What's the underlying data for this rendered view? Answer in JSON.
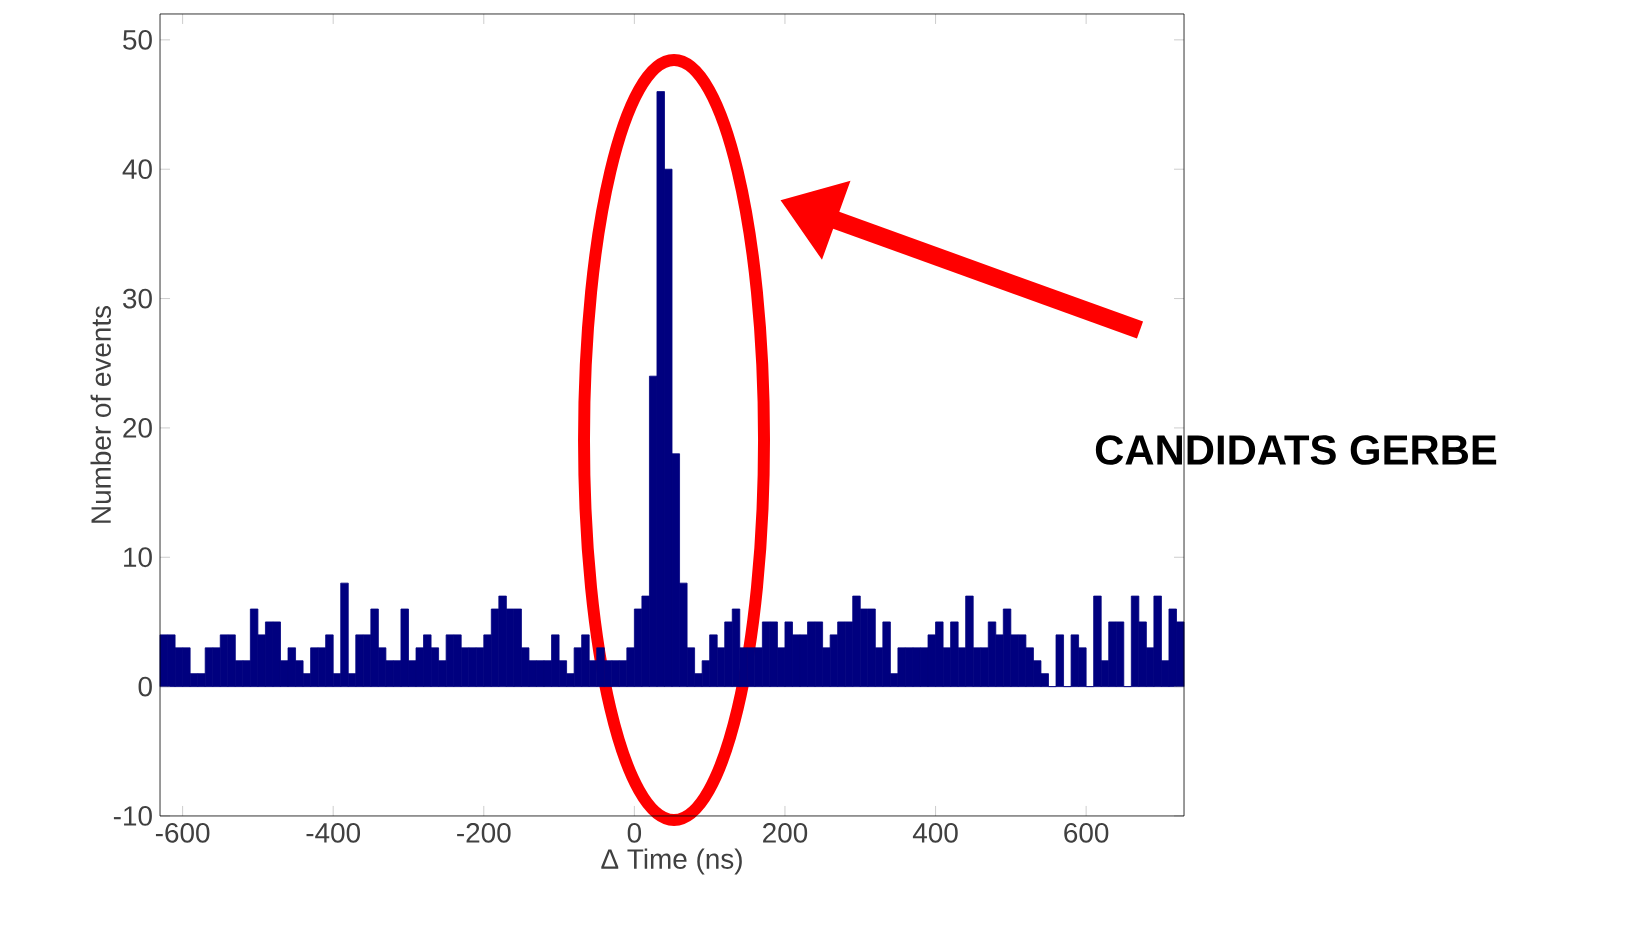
{
  "chart_data": {
    "type": "histogram",
    "bins": [
      -630,
      -620,
      -610,
      -600,
      -590,
      -580,
      -570,
      -560,
      -550,
      -540,
      -530,
      -520,
      -510,
      -500,
      -490,
      -480,
      -470,
      -460,
      -450,
      -440,
      -430,
      -420,
      -410,
      -400,
      -390,
      -380,
      -370,
      -360,
      -350,
      -340,
      -330,
      -320,
      -310,
      -300,
      -290,
      -280,
      -270,
      -260,
      -250,
      -240,
      -230,
      -220,
      -210,
      -200,
      -190,
      -180,
      -170,
      -160,
      -150,
      -140,
      -130,
      -120,
      -110,
      -100,
      -90,
      -80,
      -70,
      -60,
      -50,
      -40,
      -30,
      -20,
      -10,
      0,
      10,
      20,
      30,
      40,
      50,
      60,
      70,
      80,
      90,
      100,
      110,
      120,
      130,
      140,
      150,
      160,
      170,
      180,
      190,
      200,
      210,
      220,
      230,
      240,
      250,
      260,
      270,
      280,
      290,
      300,
      310,
      320,
      330,
      340,
      350,
      360,
      370,
      380,
      390,
      400,
      410,
      420,
      430,
      440,
      450,
      460,
      470,
      480,
      490,
      500,
      510,
      520,
      530,
      540,
      550,
      560,
      570,
      580,
      590,
      600,
      610,
      620,
      630,
      640,
      650,
      660,
      670,
      680,
      690,
      700,
      710,
      720,
      730
    ],
    "values": [
      4,
      4,
      3,
      3,
      1,
      1,
      3,
      3,
      4,
      4,
      2,
      2,
      6,
      4,
      5,
      5,
      2,
      3,
      2,
      1,
      3,
      3,
      4,
      1,
      8,
      1,
      4,
      4,
      6,
      3,
      2,
      2,
      6,
      2,
      3,
      4,
      3,
      2,
      4,
      4,
      3,
      3,
      3,
      4,
      6,
      7,
      6,
      6,
      3,
      2,
      2,
      2,
      4,
      2,
      1,
      3,
      4,
      2,
      3,
      2,
      2,
      2,
      3,
      6,
      7,
      24,
      46,
      40,
      18,
      8,
      3,
      1,
      2,
      4,
      3,
      5,
      6,
      3,
      3,
      3,
      5,
      5,
      3,
      5,
      4,
      4,
      5,
      5,
      3,
      4,
      5,
      5,
      7,
      6,
      6,
      3,
      5,
      1,
      3,
      3,
      3,
      3,
      4,
      5,
      3,
      5,
      3,
      7,
      3,
      3,
      5,
      4,
      6,
      4,
      4,
      3,
      2,
      1,
      0,
      4,
      0,
      4,
      3,
      0,
      7,
      2,
      5,
      5,
      0,
      7,
      5,
      3,
      7,
      2,
      6,
      5
    ],
    "color": "#00007f",
    "xlim": [
      -630,
      730
    ],
    "ylim": [
      -10,
      52
    ],
    "xticks": [
      -600,
      -400,
      -200,
      0,
      200,
      400,
      600
    ],
    "yticks": [
      -10,
      0,
      10,
      20,
      30,
      40,
      50
    ],
    "xlabel": "Δ Time (ns)",
    "ylabel": "Number of events",
    "annotations": [
      "CANDIDATS GERBE"
    ]
  }
}
